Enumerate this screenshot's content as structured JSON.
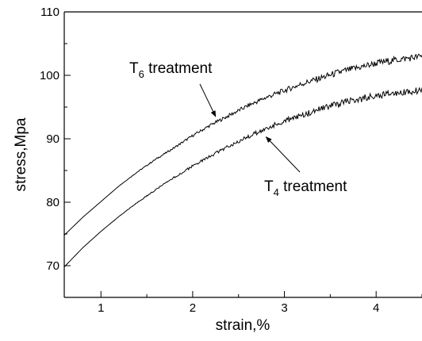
{
  "chart_data": {
    "type": "line",
    "xlabel": "strain,%",
    "ylabel": "stress,Mpa",
    "xlim": [
      0.6,
      4.5
    ],
    "ylim": [
      65,
      110
    ],
    "xticks": [
      1,
      2,
      3,
      4
    ],
    "yticks": [
      70,
      80,
      90,
      100,
      110
    ],
    "grid": false,
    "series": [
      {
        "name": "T6 treatment",
        "x": [
          0.6,
          0.8,
          1.0,
          1.2,
          1.4,
          1.6,
          1.8,
          2.0,
          2.2,
          2.4,
          2.6,
          2.8,
          3.0,
          3.2,
          3.4,
          3.6,
          3.8,
          4.0,
          4.2,
          4.4,
          4.5
        ],
        "y": [
          74.8,
          77.6,
          80.1,
          82.6,
          84.8,
          86.8,
          88.6,
          90.5,
          92.2,
          93.7,
          95.2,
          96.5,
          97.6,
          98.7,
          99.6,
          100.5,
          101.2,
          101.9,
          102.4,
          102.8,
          103.0
        ]
      },
      {
        "name": "T4 treatment",
        "x": [
          0.6,
          0.8,
          1.0,
          1.2,
          1.4,
          1.6,
          1.8,
          2.0,
          2.2,
          2.4,
          2.6,
          2.8,
          3.0,
          3.2,
          3.4,
          3.6,
          3.8,
          4.0,
          4.2,
          4.4,
          4.5
        ],
        "y": [
          69.8,
          72.8,
          75.4,
          77.8,
          80.0,
          82.0,
          83.9,
          85.7,
          87.3,
          88.9,
          90.3,
          91.6,
          92.8,
          93.8,
          94.7,
          95.5,
          96.2,
          96.8,
          97.2,
          97.5,
          97.6
        ]
      }
    ],
    "annotations": [
      {
        "base": "T",
        "sub": "6",
        "rest": " treatment",
        "target_x": 2.25,
        "target_y": 93.5
      },
      {
        "base": "T",
        "sub": "4",
        "rest": " treatment",
        "target_x": 2.8,
        "target_y": 90.3
      }
    ]
  }
}
